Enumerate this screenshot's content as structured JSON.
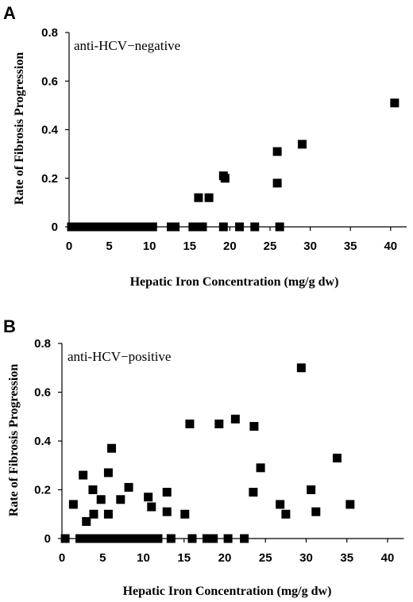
{
  "chart_data": [
    {
      "type": "scatter",
      "panel_label": "A",
      "annotation": "anti-HCV−negative",
      "xlabel": "Hepatic Iron Concentration (mg/g dw)",
      "ylabel": "Rate of Fibrosis Progression",
      "xlim": [
        0,
        42
      ],
      "ylim": [
        0,
        0.8
      ],
      "x_ticks": [
        "0",
        "5",
        "10",
        "15",
        "20",
        "25",
        "30",
        "35",
        "40"
      ],
      "x_tick_values": [
        0,
        5,
        10,
        15,
        20,
        25,
        30,
        35,
        40
      ],
      "y_ticks": [
        "0",
        "0.2",
        "0.4",
        "0.6",
        "0.8"
      ],
      "y_tick_values": [
        0,
        0.2,
        0.4,
        0.6,
        0.8
      ],
      "grid": false,
      "marker": "square",
      "points": [
        [
          0.3,
          0
        ],
        [
          0.9,
          0
        ],
        [
          1.5,
          0
        ],
        [
          2.1,
          0
        ],
        [
          2.7,
          0
        ],
        [
          3.3,
          0
        ],
        [
          3.9,
          0
        ],
        [
          4.5,
          0
        ],
        [
          5.1,
          0
        ],
        [
          5.7,
          0
        ],
        [
          6.3,
          0
        ],
        [
          6.9,
          0
        ],
        [
          7.5,
          0
        ],
        [
          8.1,
          0
        ],
        [
          8.7,
          0
        ],
        [
          9.3,
          0
        ],
        [
          9.9,
          0
        ],
        [
          10.4,
          0
        ],
        [
          12.7,
          0
        ],
        [
          13.2,
          0
        ],
        [
          15.4,
          0
        ],
        [
          16.0,
          0
        ],
        [
          16.6,
          0
        ],
        [
          19.2,
          0
        ],
        [
          21.2,
          0
        ],
        [
          23.1,
          0
        ],
        [
          26.2,
          0
        ],
        [
          16.1,
          0.12
        ],
        [
          17.4,
          0.12
        ],
        [
          19.2,
          0.21
        ],
        [
          19.4,
          0.2
        ],
        [
          25.9,
          0.31
        ],
        [
          25.9,
          0.18
        ],
        [
          29.0,
          0.34
        ],
        [
          40.5,
          0.51
        ]
      ]
    },
    {
      "type": "scatter",
      "panel_label": "B",
      "annotation": "anti-HCV−positive",
      "xlabel": "Hepatic Iron Concentration (mg/g dw)",
      "ylabel": "Rate of Fibrosis Progression",
      "xlim": [
        0,
        42
      ],
      "ylim": [
        0,
        0.8
      ],
      "x_ticks": [
        "0",
        "5",
        "10",
        "15",
        "20",
        "25",
        "30",
        "35",
        "40"
      ],
      "x_tick_values": [
        0,
        5,
        10,
        15,
        20,
        25,
        30,
        35,
        40
      ],
      "y_ticks": [
        "0",
        "0.2",
        "0.4",
        "0.6",
        "0.8"
      ],
      "y_tick_values": [
        0,
        0.2,
        0.4,
        0.6,
        0.8
      ],
      "grid": false,
      "marker": "square",
      "points": [
        [
          0.4,
          0
        ],
        [
          2.2,
          0
        ],
        [
          2.8,
          0
        ],
        [
          3.4,
          0
        ],
        [
          4.0,
          0
        ],
        [
          4.6,
          0
        ],
        [
          5.2,
          0
        ],
        [
          5.8,
          0
        ],
        [
          6.4,
          0
        ],
        [
          7.0,
          0
        ],
        [
          7.6,
          0
        ],
        [
          8.2,
          0
        ],
        [
          8.8,
          0
        ],
        [
          9.4,
          0
        ],
        [
          10.0,
          0
        ],
        [
          10.6,
          0
        ],
        [
          11.2,
          0
        ],
        [
          11.8,
          0
        ],
        [
          13.4,
          0
        ],
        [
          16.0,
          0
        ],
        [
          17.8,
          0
        ],
        [
          18.6,
          0
        ],
        [
          20.4,
          0
        ],
        [
          22.4,
          0
        ],
        [
          1.4,
          0.14
        ],
        [
          2.6,
          0.26
        ],
        [
          3.0,
          0.07
        ],
        [
          3.8,
          0.2
        ],
        [
          3.9,
          0.1
        ],
        [
          4.8,
          0.16
        ],
        [
          5.7,
          0.27
        ],
        [
          5.7,
          0.1
        ],
        [
          6.1,
          0.37
        ],
        [
          7.2,
          0.16
        ],
        [
          8.2,
          0.21
        ],
        [
          10.6,
          0.17
        ],
        [
          11.0,
          0.13
        ],
        [
          12.9,
          0.19
        ],
        [
          12.9,
          0.11
        ],
        [
          15.1,
          0.1
        ],
        [
          15.7,
          0.47
        ],
        [
          19.3,
          0.47
        ],
        [
          21.3,
          0.49
        ],
        [
          23.5,
          0.19
        ],
        [
          23.6,
          0.46
        ],
        [
          24.4,
          0.29
        ],
        [
          26.8,
          0.14
        ],
        [
          27.5,
          0.1
        ],
        [
          29.4,
          0.7
        ],
        [
          30.6,
          0.2
        ],
        [
          31.2,
          0.11
        ],
        [
          33.8,
          0.33
        ],
        [
          35.4,
          0.14
        ]
      ]
    }
  ]
}
